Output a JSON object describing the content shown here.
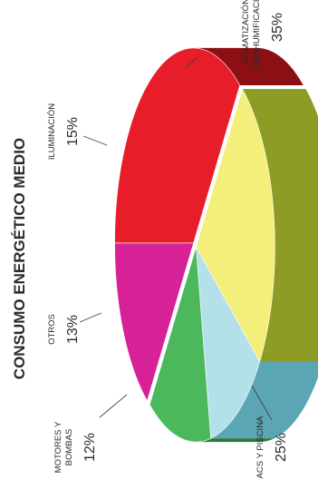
{
  "chart_data": {
    "type": "pie",
    "title": "CONSUMO ENERGÉTICO MEDIO",
    "slices": [
      {
        "label_lines": [
          "CLIMATIZACIÓN Y",
          "DESHUMIFICACIÓN"
        ],
        "percent_label": "35%",
        "value": 35,
        "color": "#e81d2a",
        "side_color": "#8c0f14"
      },
      {
        "label_lines": [
          "ACS Y PISCINA"
        ],
        "percent_label": "25%",
        "value": 25,
        "color": "#f4ef7a",
        "side_color": "#8e9b25"
      },
      {
        "label_lines": [
          "MOTORES Y",
          "BOMBAS"
        ],
        "percent_label": "12%",
        "value": 12,
        "color": "#b4e0ea",
        "side_color": "#5aa6b5"
      },
      {
        "label_lines": [
          "OTROS"
        ],
        "percent_label": "13%",
        "value": 13,
        "color": "#4cb85c",
        "side_color": "#2c7a38"
      },
      {
        "label_lines": [
          "ILUMINACIÓN"
        ],
        "percent_label": "15%",
        "value": 15,
        "color": "#d62296",
        "side_color": "#8a1461"
      }
    ]
  }
}
